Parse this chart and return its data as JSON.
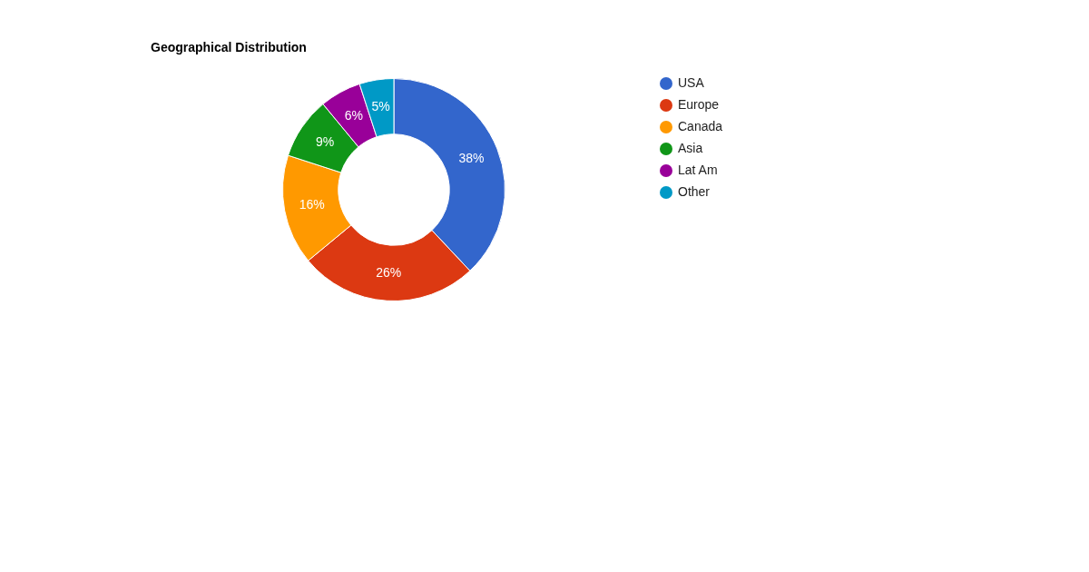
{
  "chart_data": {
    "type": "donut",
    "title": "Geographical Distribution",
    "categories": [
      "USA",
      "Europe",
      "Canada",
      "Asia",
      "Lat Am",
      "Other"
    ],
    "values": [
      38,
      26,
      16,
      9,
      6,
      5
    ],
    "value_labels": [
      "38%",
      "26%",
      "16%",
      "9%",
      "6%",
      "5%"
    ],
    "colors": [
      "#3366cc",
      "#dc3912",
      "#ff9900",
      "#109618",
      "#990099",
      "#0099c6"
    ],
    "legend": "right"
  }
}
